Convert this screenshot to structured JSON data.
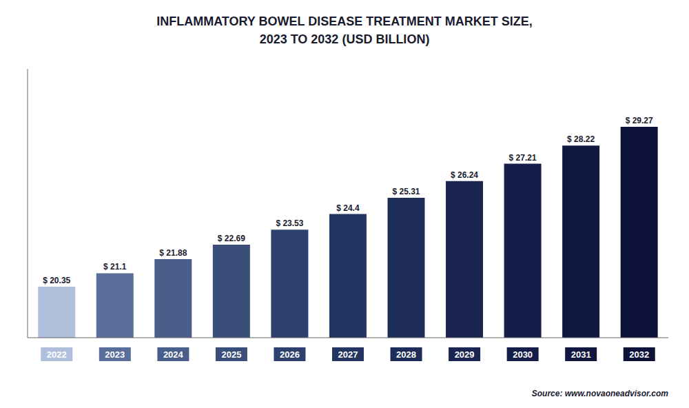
{
  "chart_data": {
    "type": "bar",
    "title": "INFLAMMATORY BOWEL DISEASE TREATMENT MARKET SIZE,",
    "subtitle": "2023 TO 2032 (USD BILLION)",
    "categories": [
      "2022",
      "2023",
      "2024",
      "2025",
      "2026",
      "2027",
      "2028",
      "2029",
      "2030",
      "2031",
      "2032"
    ],
    "values": [
      20.35,
      21.1,
      21.88,
      22.69,
      23.53,
      24.4,
      25.31,
      26.24,
      27.21,
      28.22,
      29.27
    ],
    "value_labels": [
      "$ 20.35",
      "$ 21.1",
      "$ 21.88",
      "$ 22.69",
      "$ 23.53",
      "$ 24.4",
      "$ 25.31",
      "$ 26.24",
      "$ 27.21",
      "$ 28.22",
      "$ 29.27"
    ],
    "data_labels": true,
    "colors": [
      "#b0c0dc",
      "#5a6e9a",
      "#4a5e8a",
      "#3a4e7a",
      "#2e406e",
      "#253562",
      "#1e2d58",
      "#192550",
      "#141e48",
      "#101840",
      "#0c1238"
    ],
    "ylim": [
      17.5,
      32.5
    ],
    "tick_labels": "x",
    "grid": false,
    "annotations": [
      "Source: www.novaoneadvisor.com"
    ]
  }
}
